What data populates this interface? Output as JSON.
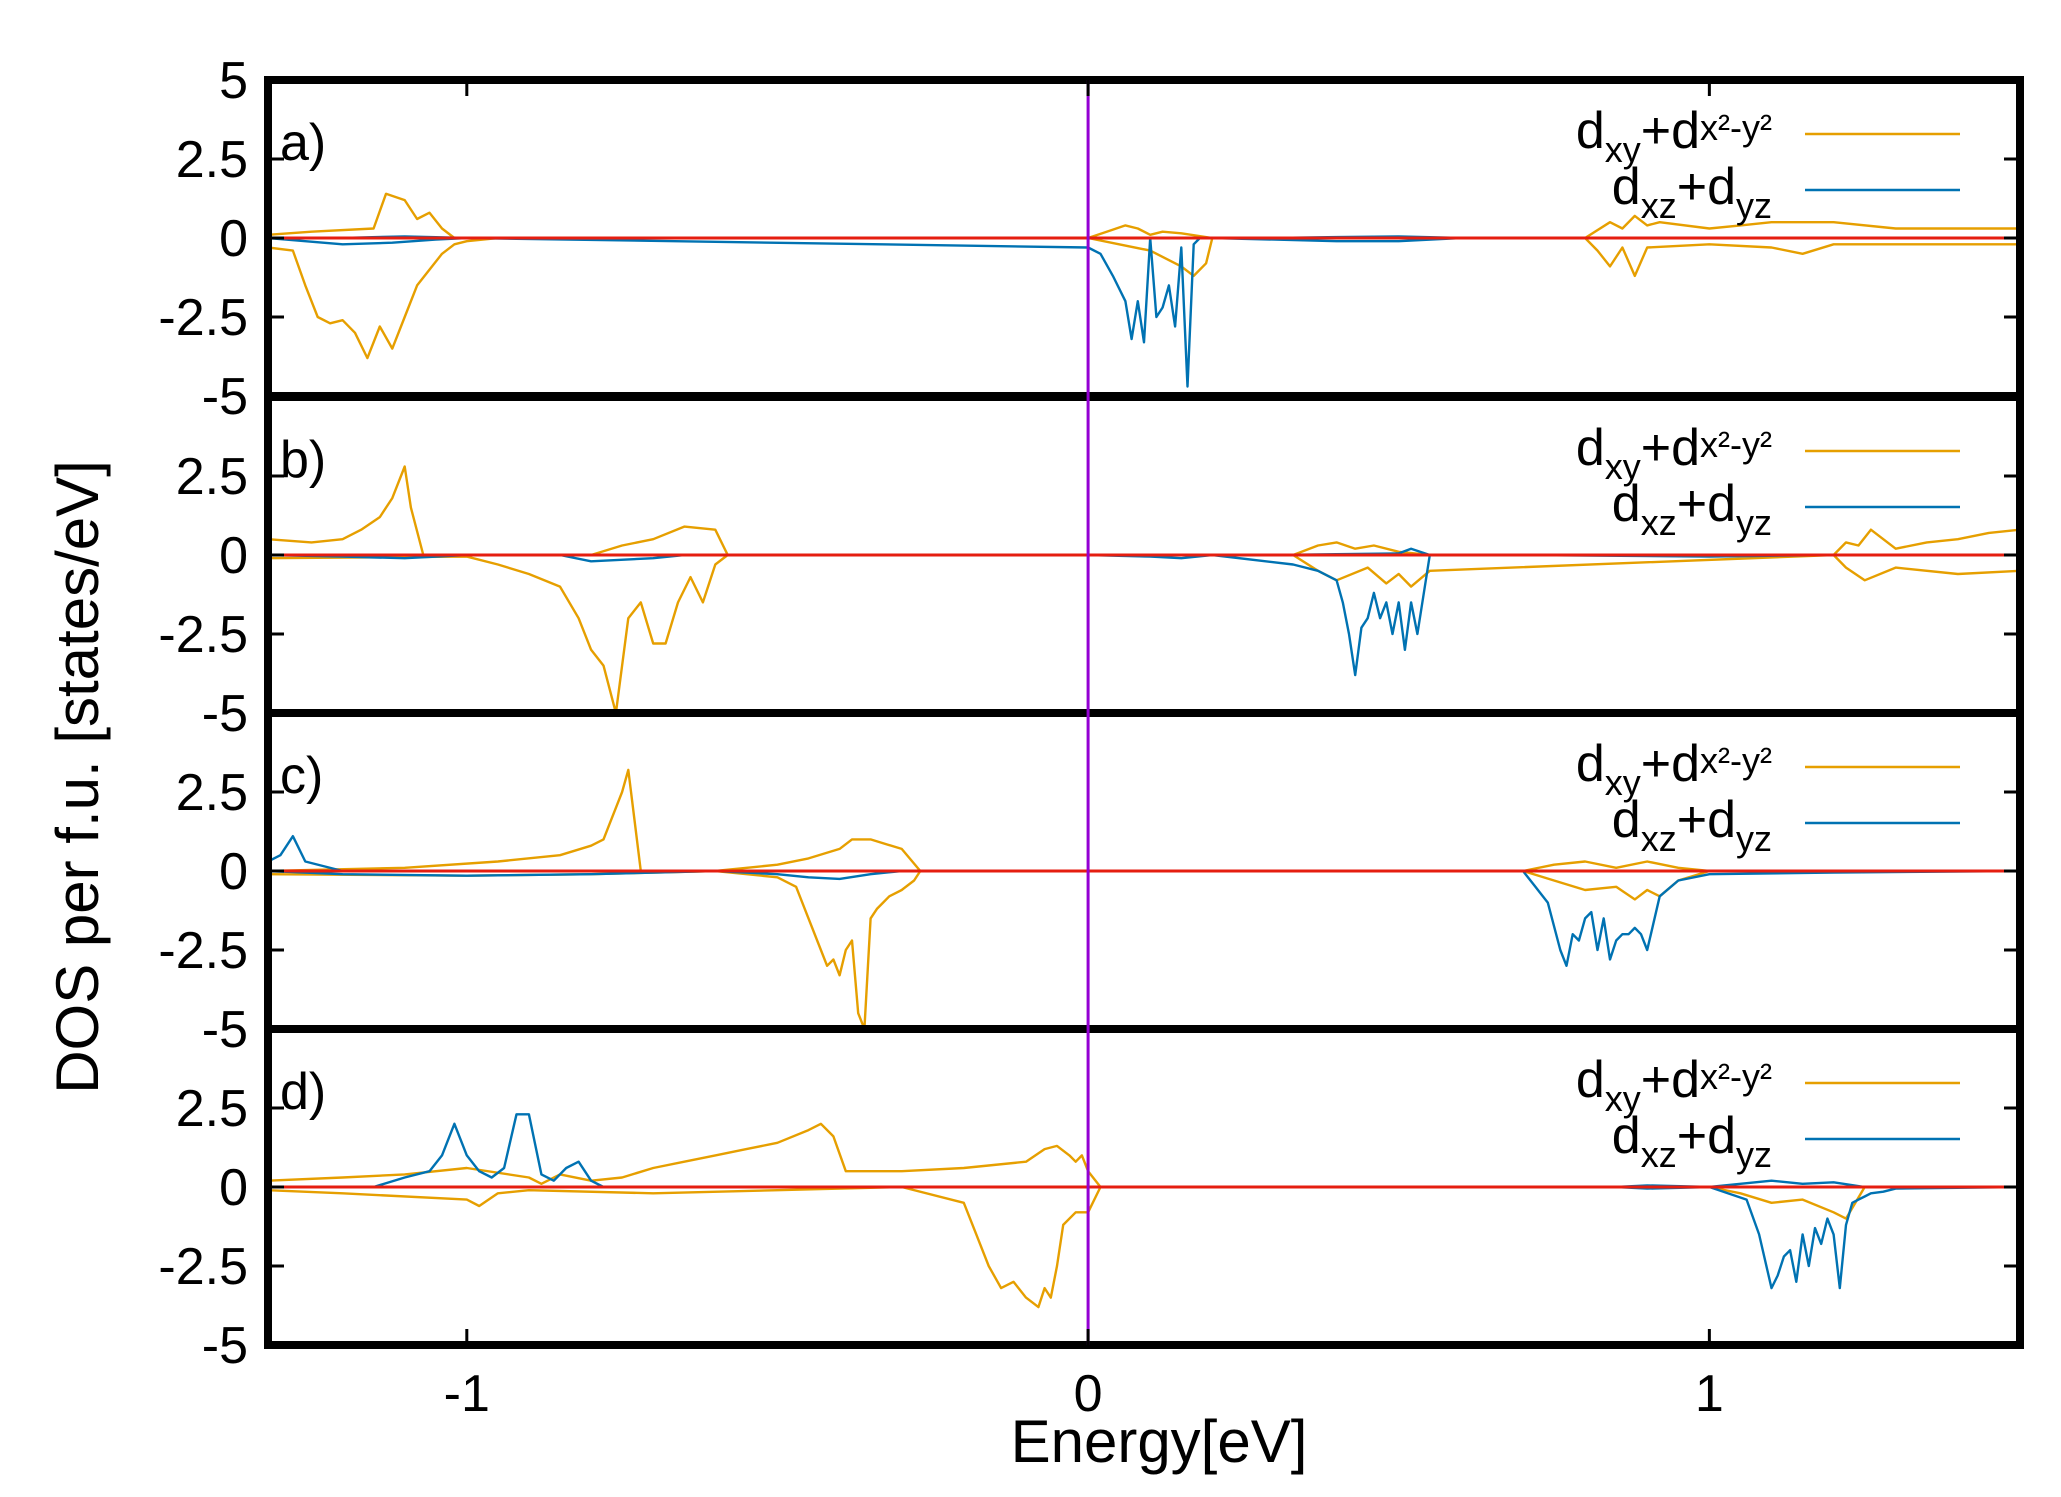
{
  "chart_data": {
    "type": "line",
    "xlabel": "Energy[eV]",
    "ylabel": "DOS per f.u. [states/eV]",
    "xlim": [
      -1.32,
      1.5
    ],
    "ylim": [
      -5,
      5
    ],
    "x_ticks": [
      -1,
      0,
      1
    ],
    "x_tick_labels": [
      "-1",
      "0",
      "1"
    ],
    "y_ticks": [
      5,
      2.5,
      0,
      -2.5,
      -5
    ],
    "y_tick_labels": [
      "5",
      "2.5",
      "0",
      "-2.5",
      "-5"
    ],
    "fermi_level": 0,
    "colors": {
      "dxy_dx2y2": "#e69f00",
      "dxz_dyz": "#0072b2",
      "zero_line": "#e51e10",
      "fermi_line": "#9400d3"
    },
    "legend": {
      "series1": {
        "main": "d",
        "sub1": "xy",
        "plus": "+d",
        "sub2": "x²-y²"
      },
      "series2": {
        "main": "d",
        "sub1": "xz",
        "plus": "+d",
        "sub2": "yz"
      }
    },
    "panels": [
      {
        "label": "a)",
        "series": [
          {
            "name": "dxy+dx2-y2 up",
            "x": [
              -1.32,
              -1.25,
              -1.15,
              -1.13,
              -1.1,
              -1.08,
              -1.06,
              -1.04,
              -1.02,
              -1.0,
              -0.95,
              0.0,
              0.03,
              0.06,
              0.08,
              0.1,
              0.12,
              0.15,
              0.2,
              0.8,
              0.84,
              0.86,
              0.88,
              0.9,
              0.92,
              1.0,
              1.05,
              1.1,
              1.2,
              1.3,
              1.5
            ],
            "y": [
              0.1,
              0.2,
              0.3,
              1.4,
              1.2,
              0.6,
              0.8,
              0.3,
              0.0,
              0.0,
              0.0,
              0.0,
              0.2,
              0.4,
              0.3,
              0.1,
              0.2,
              0.15,
              0.0,
              0.0,
              0.5,
              0.3,
              0.7,
              0.4,
              0.5,
              0.3,
              0.4,
              0.5,
              0.5,
              0.3,
              0.3
            ]
          },
          {
            "name": "dxy+dx2-y2 down",
            "x": [
              -1.32,
              -1.28,
              -1.26,
              -1.24,
              -1.22,
              -1.2,
              -1.18,
              -1.16,
              -1.14,
              -1.12,
              -1.1,
              -1.08,
              -1.06,
              -1.04,
              -1.02,
              -1.0,
              -0.95,
              0.0,
              0.05,
              0.1,
              0.15,
              0.17,
              0.19,
              0.2,
              0.8,
              0.82,
              0.84,
              0.86,
              0.88,
              0.9,
              1.0,
              1.1,
              1.15,
              1.2,
              1.3,
              1.5
            ],
            "y": [
              -0.3,
              -0.4,
              -1.5,
              -2.5,
              -2.7,
              -2.6,
              -3.0,
              -3.8,
              -2.8,
              -3.5,
              -2.5,
              -1.5,
              -1.0,
              -0.5,
              -0.2,
              -0.1,
              0.0,
              0.0,
              -0.2,
              -0.4,
              -0.9,
              -1.2,
              -0.8,
              0.0,
              0.0,
              -0.4,
              -0.9,
              -0.3,
              -1.2,
              -0.3,
              -0.2,
              -0.3,
              -0.5,
              -0.2,
              -0.2,
              -0.2
            ]
          },
          {
            "name": "dxz+dyz up",
            "x": [
              -1.32,
              -1.2,
              -1.1,
              -1.0,
              0.3,
              0.4,
              0.5,
              0.6,
              1.5
            ],
            "y": [
              0,
              0,
              0.05,
              0,
              0,
              0.03,
              0.05,
              0,
              0
            ]
          },
          {
            "name": "dxz+dyz down",
            "x": [
              -1.32,
              -1.26,
              -1.2,
              -1.12,
              -1.05,
              -1.0,
              0.0,
              0.02,
              0.04,
              0.06,
              0.07,
              0.08,
              0.09,
              0.1,
              0.11,
              0.12,
              0.13,
              0.14,
              0.15,
              0.16,
              0.17,
              0.18,
              0.19,
              0.2,
              0.4,
              0.5,
              0.6,
              1.5
            ],
            "y": [
              0,
              -0.1,
              -0.2,
              -0.15,
              -0.05,
              0,
              -0.3,
              -0.5,
              -1.2,
              -2.0,
              -3.2,
              -2.0,
              -3.3,
              0.0,
              -2.5,
              -2.2,
              -1.5,
              -2.8,
              -0.3,
              -4.7,
              -0.2,
              0.0,
              0.0,
              0.0,
              -0.1,
              -0.1,
              0.0,
              0.0
            ]
          }
        ]
      },
      {
        "label": "b)",
        "series": [
          {
            "name": "dxy+dx2-y2 up",
            "x": [
              -1.32,
              -1.25,
              -1.2,
              -1.17,
              -1.14,
              -1.12,
              -1.1,
              -1.09,
              -1.07,
              -1.05,
              -0.8,
              -0.75,
              -0.7,
              -0.65,
              -0.6,
              -0.58,
              0.33,
              0.37,
              0.4,
              0.43,
              0.46,
              0.5,
              0.55,
              1.2,
              1.22,
              1.24,
              1.26,
              1.3,
              1.35,
              1.4,
              1.45,
              1.5
            ],
            "y": [
              0.5,
              0.4,
              0.5,
              0.8,
              1.2,
              1.8,
              2.8,
              1.5,
              0.0,
              0.0,
              0.0,
              0.3,
              0.5,
              0.9,
              0.8,
              0.0,
              0.0,
              0.3,
              0.4,
              0.2,
              0.3,
              0.1,
              0.0,
              0.0,
              0.4,
              0.3,
              0.8,
              0.2,
              0.4,
              0.5,
              0.7,
              0.8
            ]
          },
          {
            "name": "dxy+dx2-y2 down",
            "x": [
              -1.32,
              -1.0,
              -0.95,
              -0.9,
              -0.85,
              -0.82,
              -0.8,
              -0.78,
              -0.76,
              -0.75,
              -0.74,
              -0.72,
              -0.7,
              -0.68,
              -0.66,
              -0.64,
              -0.62,
              -0.6,
              -0.58,
              0.33,
              0.37,
              0.4,
              0.45,
              0.48,
              0.5,
              0.52,
              0.55,
              1.2,
              1.22,
              1.25,
              1.3,
              1.4,
              1.5
            ],
            "y": [
              -0.1,
              -0.05,
              -0.3,
              -0.6,
              -1.0,
              -2.0,
              -3.0,
              -3.5,
              -5.0,
              -3.5,
              -2.0,
              -1.5,
              -2.8,
              -2.8,
              -1.5,
              -0.7,
              -1.5,
              -0.3,
              0.0,
              0.0,
              -0.5,
              -0.8,
              -0.4,
              -0.9,
              -0.6,
              -1.0,
              -0.5,
              0.0,
              -0.4,
              -0.8,
              -0.4,
              -0.6,
              -0.5
            ]
          },
          {
            "name": "dxz+dyz up",
            "x": [
              -1.32,
              -1.0,
              0.3,
              0.5,
              0.52,
              0.55,
              1.5
            ],
            "y": [
              0,
              0,
              0,
              0.05,
              0.2,
              0,
              0
            ]
          },
          {
            "name": "dxz+dyz down",
            "x": [
              -1.32,
              -1.2,
              -1.1,
              -1.0,
              -0.85,
              -0.8,
              -0.7,
              -0.65,
              0.0,
              0.1,
              0.15,
              0.2,
              0.33,
              0.37,
              0.4,
              0.41,
              0.42,
              0.43,
              0.44,
              0.45,
              0.46,
              0.47,
              0.48,
              0.49,
              0.5,
              0.51,
              0.52,
              0.53,
              0.55,
              0.7,
              1.0,
              1.2,
              1.5
            ],
            "y": [
              0,
              -0.05,
              -0.1,
              0,
              0,
              -0.2,
              -0.1,
              0,
              0,
              -0.05,
              -0.1,
              0,
              -0.3,
              -0.5,
              -0.8,
              -1.5,
              -2.5,
              -3.8,
              -2.3,
              -2.0,
              -1.2,
              -2.0,
              -1.5,
              -2.5,
              -1.5,
              -3.0,
              -1.5,
              -2.5,
              0.0,
              0.0,
              -0.05,
              0,
              0
            ]
          }
        ]
      },
      {
        "label": "c)",
        "series": [
          {
            "name": "dxy+dx2-y2 up",
            "x": [
              -1.32,
              -1.1,
              -0.95,
              -0.85,
              -0.8,
              -0.78,
              -0.77,
              -0.76,
              -0.75,
              -0.74,
              -0.72,
              -0.6,
              -0.5,
              -0.45,
              -0.4,
              -0.38,
              -0.35,
              -0.3,
              -0.27,
              0.7,
              0.75,
              0.8,
              0.85,
              0.9,
              0.95,
              1.0
            ],
            "y": [
              0.0,
              0.1,
              0.3,
              0.5,
              0.8,
              1.0,
              1.5,
              2.0,
              2.5,
              3.2,
              0.0,
              0.0,
              0.2,
              0.4,
              0.7,
              1.0,
              1.0,
              0.7,
              0.0,
              0.0,
              0.2,
              0.3,
              0.1,
              0.3,
              0.1,
              0.0
            ]
          },
          {
            "name": "dxy+dx2-y2 down",
            "x": [
              -1.32,
              -1.0,
              -0.8,
              -0.6,
              -0.5,
              -0.47,
              -0.45,
              -0.43,
              -0.42,
              -0.41,
              -0.4,
              -0.39,
              -0.38,
              -0.37,
              -0.36,
              -0.35,
              -0.34,
              -0.33,
              -0.32,
              -0.3,
              -0.28,
              -0.27,
              0.7,
              0.75,
              0.8,
              0.85,
              0.88,
              0.9,
              0.92,
              0.95,
              1.0
            ],
            "y": [
              -0.1,
              -0.15,
              -0.1,
              0.0,
              -0.2,
              -0.5,
              -1.5,
              -2.5,
              -3.0,
              -2.8,
              -3.3,
              -2.5,
              -2.2,
              -4.5,
              -5.0,
              -1.5,
              -1.2,
              -1.0,
              -0.8,
              -0.6,
              -0.3,
              0.0,
              0.0,
              -0.3,
              -0.6,
              -0.5,
              -0.9,
              -0.6,
              -0.8,
              -0.3,
              0.0
            ]
          },
          {
            "name": "dxz+dyz up",
            "x": [
              -1.32,
              -1.3,
              -1.28,
              -1.26,
              -1.2,
              -1.0,
              1.5
            ],
            "y": [
              0.3,
              0.5,
              1.1,
              0.3,
              0.0,
              0.0,
              0.0
            ]
          },
          {
            "name": "dxz+dyz down",
            "x": [
              -1.32,
              -1.2,
              -1.0,
              -0.8,
              -0.6,
              -0.5,
              -0.45,
              -0.4,
              -0.35,
              -0.3,
              0.7,
              0.72,
              0.74,
              0.76,
              0.77,
              0.78,
              0.79,
              0.8,
              0.81,
              0.82,
              0.83,
              0.84,
              0.85,
              0.86,
              0.87,
              0.88,
              0.89,
              0.9,
              0.92,
              0.95,
              1.0,
              1.2,
              1.5
            ],
            "y": [
              0,
              -0.1,
              -0.15,
              -0.1,
              0,
              -0.1,
              -0.2,
              -0.25,
              -0.1,
              0,
              0,
              -0.5,
              -1.0,
              -2.5,
              -3.0,
              -2.0,
              -2.2,
              -1.5,
              -1.3,
              -2.5,
              -1.5,
              -2.8,
              -2.2,
              -2.0,
              -2.0,
              -1.8,
              -2.0,
              -2.5,
              -0.8,
              -0.3,
              -0.1,
              -0.05,
              0
            ]
          }
        ]
      },
      {
        "label": "d)",
        "series": [
          {
            "name": "dxy+dx2-y2 up",
            "x": [
              -1.32,
              -1.2,
              -1.1,
              -1.0,
              -0.9,
              -0.88,
              -0.85,
              -0.8,
              -0.75,
              -0.7,
              -0.65,
              -0.6,
              -0.55,
              -0.5,
              -0.45,
              -0.43,
              -0.41,
              -0.39,
              -0.3,
              -0.2,
              -0.1,
              -0.07,
              -0.05,
              -0.03,
              -0.02,
              -0.01,
              0.0,
              0.02
            ],
            "y": [
              0.2,
              0.3,
              0.4,
              0.6,
              0.3,
              0.1,
              0.4,
              0.2,
              0.3,
              0.6,
              0.8,
              1.0,
              1.2,
              1.4,
              1.8,
              2.0,
              1.6,
              0.5,
              0.5,
              0.6,
              0.8,
              1.2,
              1.3,
              1.0,
              0.8,
              1.0,
              0.5,
              0.0
            ]
          },
          {
            "name": "dxy+dx2-y2 down",
            "x": [
              -1.32,
              -1.2,
              -1.0,
              -0.98,
              -0.95,
              -0.9,
              -0.7,
              -0.5,
              -0.3,
              -0.2,
              -0.18,
              -0.16,
              -0.14,
              -0.12,
              -0.1,
              -0.08,
              -0.07,
              -0.06,
              -0.05,
              -0.04,
              -0.02,
              0.0,
              0.02,
              1.0,
              1.05,
              1.1,
              1.15,
              1.2,
              1.22,
              1.25
            ],
            "y": [
              -0.1,
              -0.2,
              -0.4,
              -0.6,
              -0.2,
              -0.1,
              -0.2,
              -0.1,
              0.0,
              -0.5,
              -1.5,
              -2.5,
              -3.2,
              -3.0,
              -3.5,
              -3.8,
              -3.2,
              -3.5,
              -2.5,
              -1.2,
              -0.8,
              -0.8,
              0.0,
              0.0,
              -0.2,
              -0.5,
              -0.4,
              -0.8,
              -1.0,
              0.0
            ]
          },
          {
            "name": "dxz+dyz up",
            "x": [
              -1.32,
              -1.15,
              -1.1,
              -1.06,
              -1.04,
              -1.02,
              -1.0,
              -0.98,
              -0.96,
              -0.94,
              -0.92,
              -0.9,
              -0.88,
              -0.86,
              -0.84,
              -0.82,
              -0.8,
              -0.78,
              -0.7,
              0.85,
              0.9,
              1.0,
              1.05,
              1.1,
              1.15,
              1.2,
              1.25,
              1.5
            ],
            "y": [
              0,
              0,
              0.3,
              0.5,
              1.0,
              2.0,
              1.0,
              0.5,
              0.3,
              0.6,
              2.3,
              2.3,
              0.4,
              0.2,
              0.6,
              0.8,
              0.2,
              0.0,
              0.0,
              0.0,
              0.05,
              0.0,
              0.1,
              0.2,
              0.1,
              0.15,
              0.0,
              0
            ]
          },
          {
            "name": "dxz+dyz down",
            "x": [
              -1.32,
              -1.0,
              0.85,
              0.9,
              1.0,
              1.06,
              1.08,
              1.1,
              1.11,
              1.12,
              1.13,
              1.14,
              1.15,
              1.16,
              1.17,
              1.18,
              1.19,
              1.2,
              1.21,
              1.22,
              1.23,
              1.24,
              1.25,
              1.26,
              1.28,
              1.3,
              1.5
            ],
            "y": [
              0,
              0,
              0,
              -0.05,
              0,
              -0.4,
              -1.5,
              -3.2,
              -2.8,
              -2.2,
              -2.0,
              -3.0,
              -1.5,
              -2.5,
              -1.3,
              -1.8,
              -1.0,
              -1.5,
              -3.2,
              -1.2,
              -0.5,
              -0.4,
              -0.3,
              -0.2,
              -0.15,
              -0.05,
              0
            ]
          }
        ]
      }
    ]
  }
}
